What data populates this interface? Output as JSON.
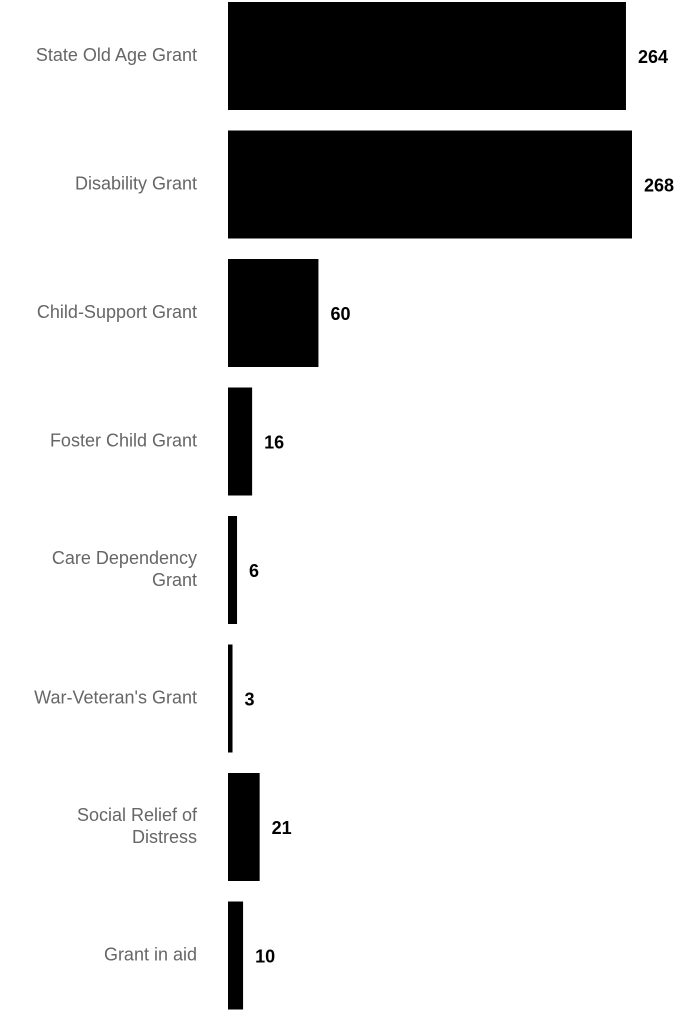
{
  "chart_data": {
    "type": "bar",
    "orientation": "horizontal",
    "categories": [
      [
        "State Old Age Grant"
      ],
      [
        "Disability Grant"
      ],
      [
        "Child-Support Grant"
      ],
      [
        "Foster Child Grant"
      ],
      [
        "Care Dependency",
        "Grant"
      ],
      [
        "War-Veteran's Grant"
      ],
      [
        "Social Relief of",
        "Distress"
      ],
      [
        "Grant in aid"
      ]
    ],
    "values": [
      264,
      268,
      60,
      16,
      6,
      3,
      21,
      10
    ],
    "data_labels": [
      "264",
      "268",
      "60",
      "16",
      "6",
      "3",
      "21",
      "10"
    ],
    "title": "",
    "xlabel": "",
    "ylabel": "",
    "xlim": [
      0,
      268
    ],
    "grid": false,
    "legend": "none",
    "colors": {
      "bar": "#000000",
      "category_text": "#666666",
      "value_text": "#000000",
      "background": "#ffffff"
    }
  }
}
